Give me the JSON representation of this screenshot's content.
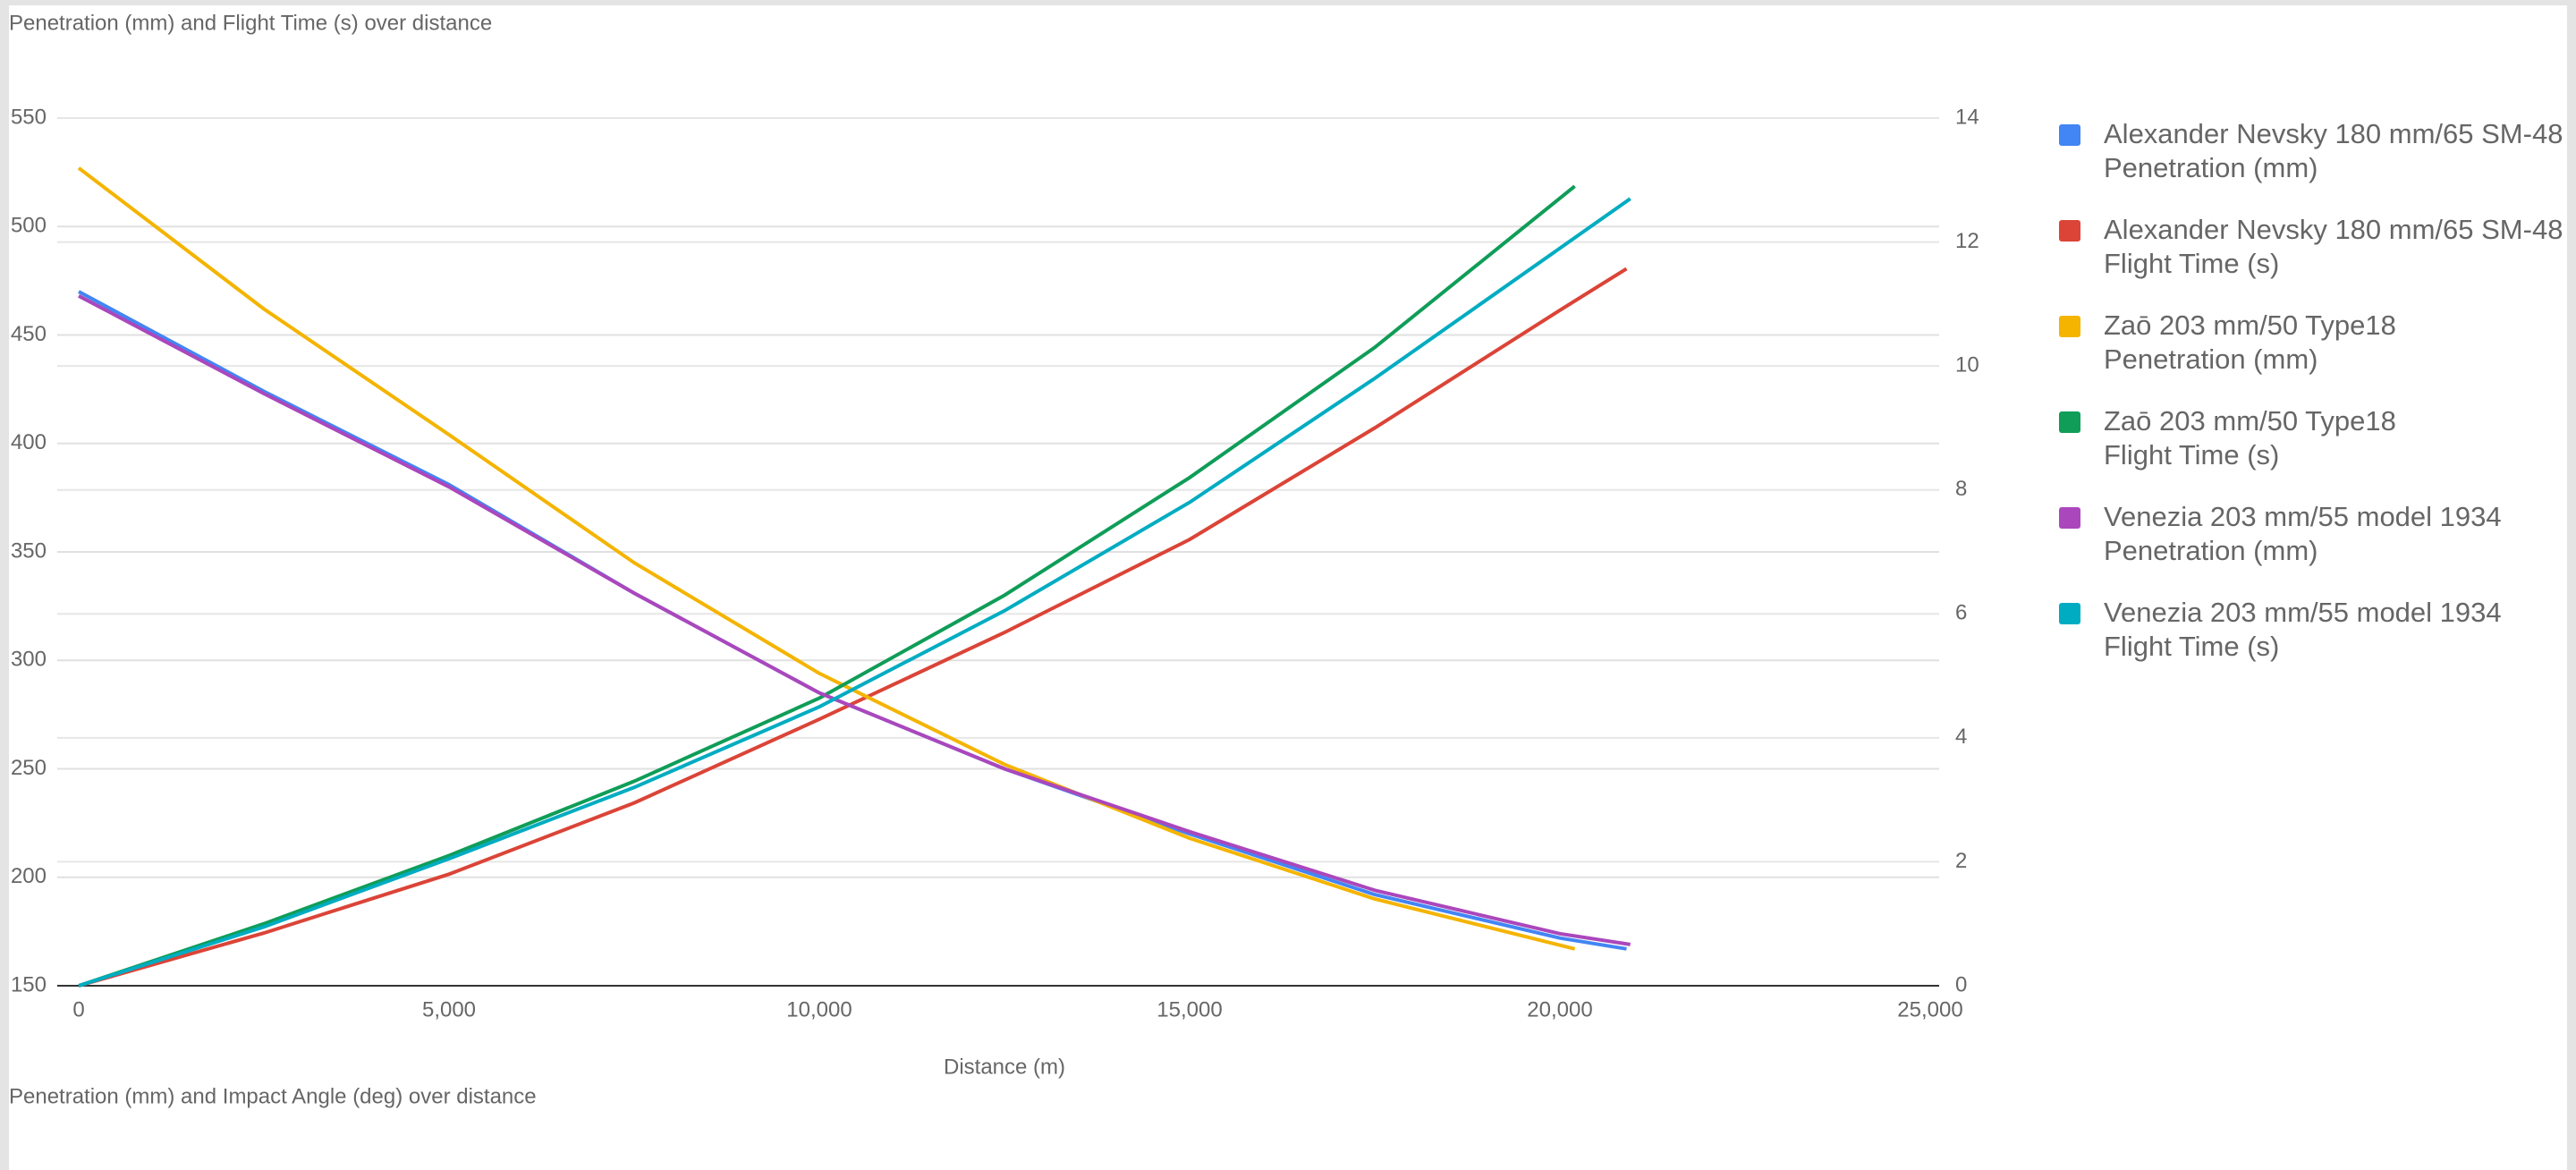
{
  "chart_data": [
    {
      "type": "line",
      "title": "Penetration (mm) and Flight Time (s) over distance",
      "x_label": "Distance (m)",
      "xlim": [
        0,
        25000
      ],
      "xticks": [
        0,
        {
          "value": 5000,
          "label": "5,000"
        },
        {
          "value": 10000,
          "label": "10,000"
        },
        {
          "value": 15000,
          "label": "15,000"
        },
        {
          "value": 20000,
          "label": "20,000"
        },
        {
          "value": 25000,
          "label": "25,000"
        }
      ],
      "ylim": [
        150,
        550
      ],
      "yticks": [
        150,
        200,
        250,
        300,
        350,
        400,
        450,
        500,
        550
      ],
      "y2lim": [
        0,
        14
      ],
      "y2ticks": [
        0,
        2,
        4,
        6,
        8,
        10,
        12,
        14
      ],
      "grid": true,
      "legend": "right",
      "series": [
        {
          "name": "Alexander Nevsky 180 mm/65 SM-48\nPenetration (mm)",
          "color": "#4285f4",
          "axis": "y",
          "x": [
            0,
            2500,
            5000,
            7500,
            10000,
            12500,
            15000,
            17500,
            20000,
            20900
          ],
          "values": [
            470,
            424,
            381,
            331,
            285,
            250,
            220,
            192,
            172,
            167
          ]
        },
        {
          "name": "Alexander Nevsky 180 mm/65 SM-48\nFlight Time (s)",
          "color": "#db4437",
          "axis": "y2",
          "x": [
            0,
            2500,
            5000,
            7500,
            10000,
            12500,
            15000,
            17500,
            20000,
            20900
          ],
          "values": [
            0,
            0.85,
            1.8,
            2.95,
            4.3,
            5.7,
            7.2,
            9.0,
            10.9,
            11.57
          ]
        },
        {
          "name": "Zaō 203 mm/50 Type18\nPenetration (mm)",
          "color": "#f4b400",
          "axis": "y",
          "x": [
            0,
            2500,
            5000,
            7500,
            10000,
            12500,
            15000,
            17500,
            20200
          ],
          "values": [
            527,
            462,
            404,
            345,
            294,
            252,
            218,
            190,
            167
          ]
        },
        {
          "name": "Zaō 203 mm/50 Type18\nFlight Time (s)",
          "color": "#0f9d58",
          "axis": "y2",
          "x": [
            0,
            2500,
            5000,
            7500,
            10000,
            12500,
            15000,
            17500,
            20200
          ],
          "values": [
            0,
            1.0,
            2.1,
            3.3,
            4.64,
            6.3,
            8.2,
            10.3,
            12.9
          ]
        },
        {
          "name": "Venezia 203 mm/55 model 1934\nPenetration (mm)",
          "color": "#ab47bc",
          "axis": "y",
          "x": [
            0,
            2500,
            5000,
            7500,
            10000,
            12500,
            15000,
            17500,
            20000,
            20950
          ],
          "values": [
            468,
            423,
            380,
            331,
            285,
            250,
            221,
            194,
            174,
            169
          ]
        },
        {
          "name": "Venezia 203 mm/55 model 1934\nFlight Time (s)",
          "color": "#00acc1",
          "axis": "y2",
          "x": [
            0,
            2500,
            5000,
            7500,
            10000,
            12500,
            15000,
            17500,
            20000,
            20950
          ],
          "values": [
            0,
            0.95,
            2.05,
            3.2,
            4.5,
            6.05,
            7.8,
            9.8,
            11.9,
            12.7
          ]
        }
      ]
    },
    {
      "type": "line",
      "title": "Penetration (mm) and Impact Angle (deg) over distance"
    }
  ]
}
